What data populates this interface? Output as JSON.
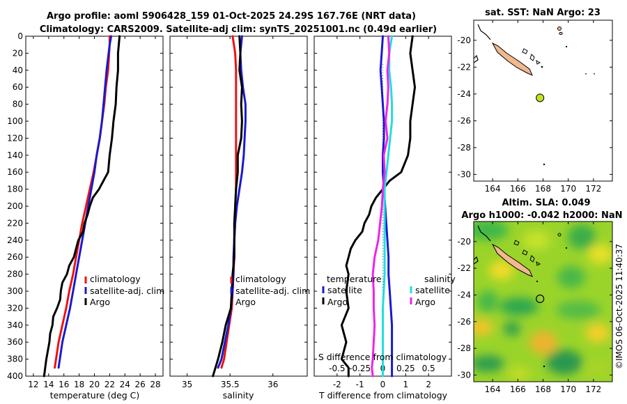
{
  "title": {
    "line1": "Argo profile: aoml 5906428_159 01-Oct-2025 24.29S 167.76E (NRT data)",
    "line2": "Climatology: CARS2009. Satellite-adj clim: synTS_20251001.nc (0.49d earlier)"
  },
  "colors": {
    "climatology": "#ee1111",
    "satellite": "#1a1acc",
    "argo": "#000000",
    "satellite_salinity": "#22dddd",
    "argo_salinity": "#ee22ee",
    "land": "#f2b890",
    "argo_marker": "#c8e020"
  },
  "chart_data": [
    {
      "name": "temperature",
      "type": "line",
      "xlabel": "temperature (deg C)",
      "xlim": [
        11,
        29
      ],
      "ylim": [
        400,
        0
      ],
      "xticks": [
        12,
        14,
        16,
        18,
        20,
        22,
        24,
        26,
        28
      ],
      "xtick_labels": [
        "12",
        "14",
        "16",
        "18",
        "20",
        "22",
        "24",
        "26",
        "28"
      ],
      "yticks": [
        0,
        20,
        40,
        60,
        80,
        100,
        120,
        140,
        160,
        180,
        200,
        220,
        240,
        260,
        280,
        300,
        320,
        340,
        360,
        380,
        400
      ],
      "ytick_labels": [
        "0",
        "20",
        "40",
        "60",
        "80",
        "100",
        "120",
        "140",
        "160",
        "180",
        "200",
        "220",
        "240",
        "260",
        "280",
        "300",
        "320",
        "340",
        "360",
        "380",
        "400"
      ],
      "legend": [
        "climatology",
        "satellite-adj. clim",
        "Argo"
      ],
      "series": [
        {
          "name": "climatology",
          "color": "#ee1111",
          "x": [
            22.0,
            22.0,
            21.8,
            21.5,
            21.3,
            21.0,
            20.7,
            20.3,
            19.9,
            19.4,
            18.9,
            18.4,
            18.0,
            17.6,
            17.2,
            16.7,
            16.3,
            15.8,
            15.3,
            14.8
          ],
          "y": [
            0,
            10,
            40,
            60,
            80,
            100,
            120,
            140,
            160,
            180,
            200,
            220,
            240,
            260,
            280,
            300,
            320,
            340,
            360,
            390
          ]
        },
        {
          "name": "satellite-adj. clim",
          "color": "#1a1acc",
          "x": [
            22.2,
            22.0,
            21.6,
            21.4,
            21.2,
            21.0,
            20.7,
            20.3,
            20.0,
            19.6,
            19.2,
            18.8,
            18.4,
            18.0,
            17.6,
            17.2,
            16.8,
            16.3,
            15.8,
            15.3
          ],
          "y": [
            0,
            10,
            40,
            60,
            80,
            100,
            120,
            140,
            160,
            180,
            200,
            220,
            240,
            260,
            280,
            300,
            320,
            340,
            360,
            390
          ]
        },
        {
          "name": "Argo",
          "color": "#000000",
          "x": [
            23.3,
            23.1,
            23.1,
            22.9,
            22.8,
            22.5,
            22.3,
            22.0,
            21.8,
            21.2,
            20.6,
            19.8,
            19.4,
            19.1,
            18.7,
            18.5,
            17.9,
            17.6,
            17.3,
            16.7,
            16.4,
            15.8,
            15.6,
            15.5,
            15.1,
            14.6,
            14.5,
            14.2,
            14.1,
            13.7,
            13.4
          ],
          "y": [
            0,
            20,
            40,
            60,
            80,
            100,
            120,
            140,
            160,
            170,
            180,
            190,
            200,
            210,
            220,
            230,
            240,
            250,
            260,
            270,
            280,
            290,
            300,
            310,
            320,
            330,
            340,
            350,
            360,
            380,
            400
          ]
        }
      ]
    },
    {
      "name": "salinity",
      "type": "line",
      "xlabel": "salinity",
      "xlim": [
        34.8,
        36.4
      ],
      "ylim": [
        400,
        0
      ],
      "xticks": [
        35,
        35.5,
        36
      ],
      "xtick_labels": [
        "35",
        "35.5",
        "36"
      ],
      "legend": [
        "climatology",
        "satellite-adj. clim",
        "Argo"
      ],
      "series": [
        {
          "name": "climatology",
          "color": "#ee1111",
          "x": [
            35.53,
            35.56,
            35.57,
            35.57,
            35.57,
            35.57,
            35.57,
            35.57,
            35.57,
            35.57,
            35.56,
            35.56,
            35.55,
            35.55,
            35.54,
            35.53,
            35.52,
            35.49,
            35.46,
            35.43,
            35.4
          ],
          "y": [
            0,
            20,
            40,
            60,
            80,
            100,
            120,
            140,
            160,
            180,
            200,
            220,
            240,
            260,
            280,
            300,
            320,
            340,
            360,
            380,
            390
          ]
        },
        {
          "name": "satellite-adj. clim",
          "color": "#1a1acc",
          "x": [
            35.64,
            35.62,
            35.63,
            35.65,
            35.68,
            35.68,
            35.67,
            35.66,
            35.64,
            35.61,
            35.58,
            35.56,
            35.55,
            35.54,
            35.54,
            35.53,
            35.51,
            35.48,
            35.44,
            35.4,
            35.36
          ],
          "y": [
            0,
            20,
            40,
            60,
            80,
            100,
            120,
            140,
            160,
            180,
            200,
            220,
            240,
            260,
            280,
            300,
            320,
            340,
            360,
            380,
            390
          ]
        },
        {
          "name": "Argo",
          "color": "#000000",
          "x": [
            35.61,
            35.62,
            35.61,
            35.64,
            35.63,
            35.64,
            35.63,
            35.59,
            35.59,
            35.57,
            35.56,
            35.55,
            35.55,
            35.55,
            35.53,
            35.52,
            35.51,
            35.45,
            35.41,
            35.36,
            35.33,
            35.3
          ],
          "y": [
            0,
            20,
            40,
            60,
            80,
            100,
            120,
            140,
            160,
            180,
            200,
            220,
            240,
            260,
            280,
            300,
            320,
            340,
            360,
            380,
            390,
            400
          ]
        }
      ]
    },
    {
      "name": "difference",
      "type": "line",
      "xlabel": "T difference from climatology",
      "xlim": [
        -3,
        3
      ],
      "ylim": [
        400,
        0
      ],
      "xticks": [
        -2,
        -1,
        0,
        1,
        2
      ],
      "xtick_labels": [
        "-2",
        "-1",
        "0",
        "1",
        "2"
      ],
      "s_axis_label": "S difference from climatology",
      "s_ticks": [
        -0.5,
        -0.25,
        0,
        0.25,
        0.5
      ],
      "s_tick_labels": [
        "-0.5",
        "-0.25",
        "0",
        "0.25",
        "0.5"
      ],
      "legend_headings": [
        "temperature",
        "salinity"
      ],
      "legend": [
        "satellite",
        "Argo",
        "satellite",
        "Argo"
      ],
      "series": [
        {
          "name": "T satellite",
          "color": "#1a1acc",
          "x": [
            0.0,
            -0.05,
            -0.1,
            -0.05,
            0.0,
            0.05,
            0.05,
            0.0,
            0.0,
            0.05,
            0.1,
            0.15,
            0.2,
            0.25,
            0.25,
            0.3,
            0.35,
            0.4,
            0.4,
            0.4,
            0.4
          ],
          "y": [
            0,
            20,
            40,
            60,
            80,
            100,
            120,
            140,
            160,
            180,
            200,
            220,
            240,
            260,
            280,
            300,
            320,
            340,
            360,
            380,
            400
          ]
        },
        {
          "name": "T Argo",
          "color": "#000000",
          "x": [
            1.3,
            1.2,
            1.3,
            1.4,
            1.3,
            1.2,
            1.2,
            1.1,
            0.8,
            0.3,
            0.0,
            -0.3,
            -0.5,
            -0.6,
            -0.8,
            -0.9,
            -1.2,
            -1.4,
            -1.5,
            -1.6,
            -1.5,
            -1.6,
            -1.5,
            -1.8,
            -1.6,
            -1.7,
            -1.8,
            -1.5,
            -1.5
          ],
          "y": [
            0,
            20,
            40,
            60,
            80,
            100,
            120,
            140,
            160,
            170,
            180,
            190,
            200,
            210,
            220,
            230,
            240,
            250,
            260,
            270,
            280,
            300,
            320,
            340,
            360,
            370,
            380,
            390,
            400
          ]
        },
        {
          "name": "S satellite",
          "color": "#22dddd",
          "x": [
            0.1,
            0.07,
            0.07,
            0.09,
            0.1,
            0.1,
            0.08,
            0.06,
            0.04,
            0.02,
            0.02,
            0.02,
            0.02,
            0.02,
            0.02,
            0.01,
            0.0,
            0.0,
            0.0,
            0.0,
            0.0
          ],
          "y": [
            0,
            20,
            40,
            60,
            80,
            100,
            120,
            140,
            160,
            180,
            200,
            220,
            240,
            260,
            280,
            300,
            320,
            340,
            360,
            380,
            400
          ]
        },
        {
          "name": "S Argo",
          "color": "#ee22ee",
          "x": [
            0.06,
            0.07,
            0.05,
            0.06,
            0.05,
            0.03,
            0.05,
            0.01,
            0.02,
            0.0,
            -0.01,
            -0.03,
            -0.05,
            -0.09,
            -0.11,
            -0.1,
            -0.1,
            -0.09,
            -0.1,
            -0.11,
            -0.12,
            -0.11
          ],
          "y": [
            0,
            20,
            40,
            60,
            80,
            100,
            120,
            140,
            160,
            180,
            200,
            220,
            240,
            260,
            280,
            300,
            320,
            340,
            360,
            380,
            390,
            400
          ]
        }
      ]
    },
    {
      "name": "sst_map",
      "type": "heatmap",
      "title": "sat. SST: NaN Argo: 23",
      "xlim": [
        162.5,
        173.5
      ],
      "ylim": [
        -30.5,
        -18.5
      ],
      "xticks": [
        164,
        166,
        168,
        170,
        172
      ],
      "xtick_labels": [
        "164",
        "166",
        "168",
        "170",
        "172"
      ],
      "yticks": [
        -20,
        -22,
        -24,
        -26,
        -28,
        -30
      ],
      "ytick_labels": [
        "-20",
        "-22",
        "-24",
        "-26",
        "-28",
        "-30"
      ],
      "argo_position": [
        167.76,
        -24.29
      ]
    },
    {
      "name": "sla_map",
      "type": "heatmap",
      "title_line1": "Altim. SLA: 0.049",
      "title_line2": "Argo h1000: -0.042 h2000: NaN",
      "xlim": [
        162.5,
        173.5
      ],
      "ylim": [
        -30.5,
        -18.5
      ],
      "xticks": [
        164,
        166,
        168,
        170,
        172
      ],
      "xtick_labels": [
        "164",
        "166",
        "168",
        "170",
        "172"
      ],
      "yticks": [
        -20,
        -22,
        -24,
        -26,
        -28,
        -30
      ],
      "ytick_labels": [
        "-20",
        "-22",
        "-24",
        "-26",
        "-28",
        "-30"
      ],
      "argo_position": [
        167.76,
        -24.29
      ]
    }
  ],
  "stamp": "©IMOS 06-Oct-2025 11:40:37"
}
